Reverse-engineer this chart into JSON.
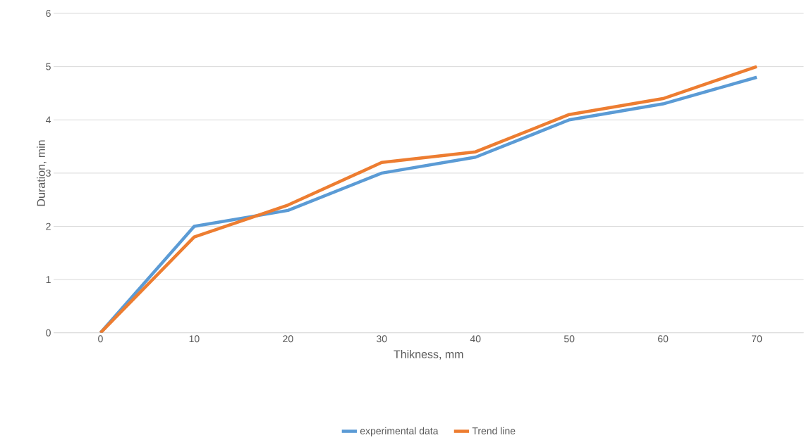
{
  "chart_data": {
    "type": "line",
    "xlabel": "Thikness, mm",
    "ylabel": "Duration, min",
    "categories": [
      "0",
      "10",
      "20",
      "30",
      "40",
      "50",
      "60",
      "70"
    ],
    "series": [
      {
        "name": "experimental data",
        "color": "#5b9bd5",
        "values": [
          0,
          2,
          2.3,
          3,
          3.3,
          4,
          4.3,
          4.8
        ]
      },
      {
        "name": "Trend line",
        "color": "#ed7d31",
        "values": [
          0,
          1.8,
          2.4,
          3.2,
          3.4,
          4.1,
          4.4,
          5.0
        ]
      }
    ],
    "ylim": [
      0,
      6
    ],
    "yticks": [
      0,
      1,
      2,
      3,
      4,
      5,
      6
    ],
    "grid": "y",
    "legend": "bottom"
  }
}
